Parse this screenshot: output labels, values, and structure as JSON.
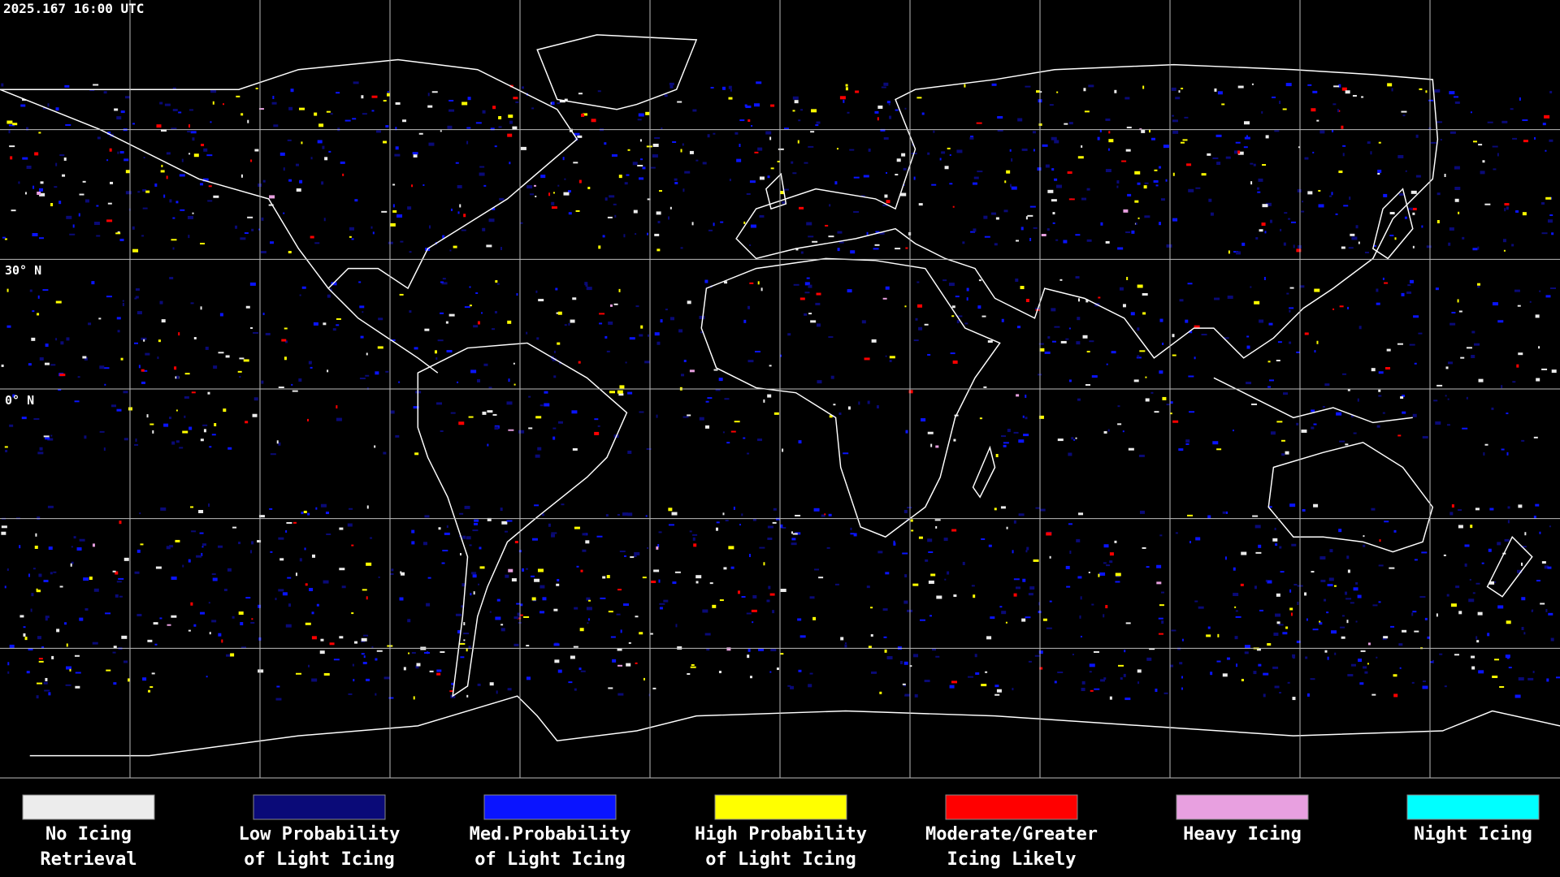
{
  "timestamp": "2025.167 16:00 UTC",
  "map": {
    "latitude_labels": [
      "30° N",
      "0° N"
    ]
  },
  "legend": [
    {
      "lines": [
        "No Icing",
        "Retrieval"
      ],
      "color": "#ececec"
    },
    {
      "lines": [
        "Low Probability",
        "of Light Icing"
      ],
      "color": "#0a0a78"
    },
    {
      "lines": [
        "Med.Probability",
        "of Light Icing"
      ],
      "color": "#0a14ff"
    },
    {
      "lines": [
        "High Probability",
        "of Light Icing"
      ],
      "color": "#ffff00"
    },
    {
      "lines": [
        "Moderate/Greater",
        "Icing Likely"
      ],
      "color": "#ff0000"
    },
    {
      "lines": [
        "Heavy Icing"
      ],
      "color": "#e8a0e0"
    },
    {
      "lines": [
        "Night Icing"
      ],
      "color": "#00ffff"
    }
  ]
}
